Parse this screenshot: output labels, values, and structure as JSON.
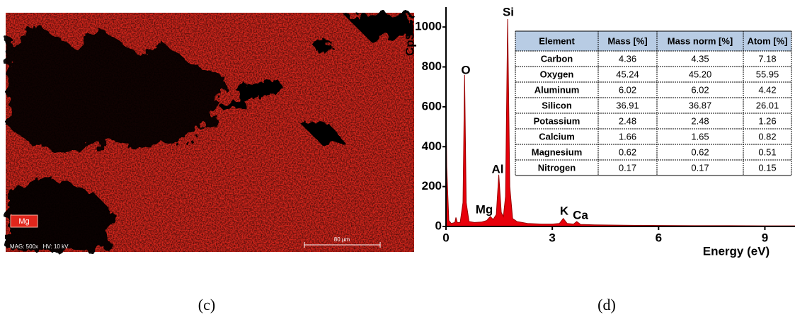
{
  "figure": {
    "map": {
      "element_label": "Mg",
      "info": "MAG: 500x   HV: 10 kV",
      "scale": "80 µm"
    },
    "captions": [
      "(c)",
      "(d)"
    ]
  },
  "chart_data": {
    "type": "area",
    "y_label": "CpS",
    "x_label": "Energy (eV)",
    "color": "#e8000b",
    "x": [
      0,
      0.02,
      0.08,
      0.15,
      0.25,
      0.28,
      0.32,
      0.4,
      0.48,
      0.525,
      0.57,
      0.65,
      0.8,
      1.0,
      1.15,
      1.25,
      1.33,
      1.42,
      1.49,
      1.56,
      1.62,
      1.68,
      1.74,
      1.8,
      1.88,
      2.0,
      2.3,
      2.7,
      3.0,
      3.2,
      3.31,
      3.42,
      3.6,
      3.69,
      3.8,
      4.2,
      5,
      6,
      7,
      8,
      9,
      9.85
    ],
    "values": [
      650,
      300,
      30,
      15,
      20,
      45,
      20,
      20,
      120,
      760,
      120,
      25,
      20,
      22,
      30,
      50,
      35,
      60,
      260,
      70,
      50,
      150,
      1040,
      200,
      40,
      25,
      15,
      12,
      12,
      15,
      40,
      15,
      12,
      25,
      10,
      8,
      6,
      5,
      4,
      4,
      3,
      3
    ],
    "xlim": [
      0,
      9.85
    ],
    "ylim": [
      0,
      1100
    ],
    "xticks": [
      0,
      3,
      6,
      9
    ],
    "yticks": [
      0,
      200,
      400,
      600,
      800,
      1000
    ],
    "annotations": [
      "Si",
      "O",
      "Al",
      "Mg",
      "K",
      "Ca"
    ],
    "table": {
      "columns": [
        "Element",
        "Mass [%]",
        "Mass norm [%]",
        "Atom [%]"
      ],
      "rows": [
        [
          "Carbon",
          "4.36",
          "4.35",
          "7.18"
        ],
        [
          "Oxygen",
          "45.24",
          "45.20",
          "55.95"
        ],
        [
          "Aluminum",
          "6.02",
          "6.02",
          "4.42"
        ],
        [
          "Silicon",
          "36.91",
          "36.87",
          "26.01"
        ],
        [
          "Potassium",
          "2.48",
          "2.48",
          "1.26"
        ],
        [
          "Calcium",
          "1.66",
          "1.65",
          "0.82"
        ],
        [
          "Magnesium",
          "0.62",
          "0.62",
          "0.51"
        ],
        [
          "Nitrogen",
          "0.17",
          "0.17",
          "0.15"
        ]
      ]
    }
  }
}
